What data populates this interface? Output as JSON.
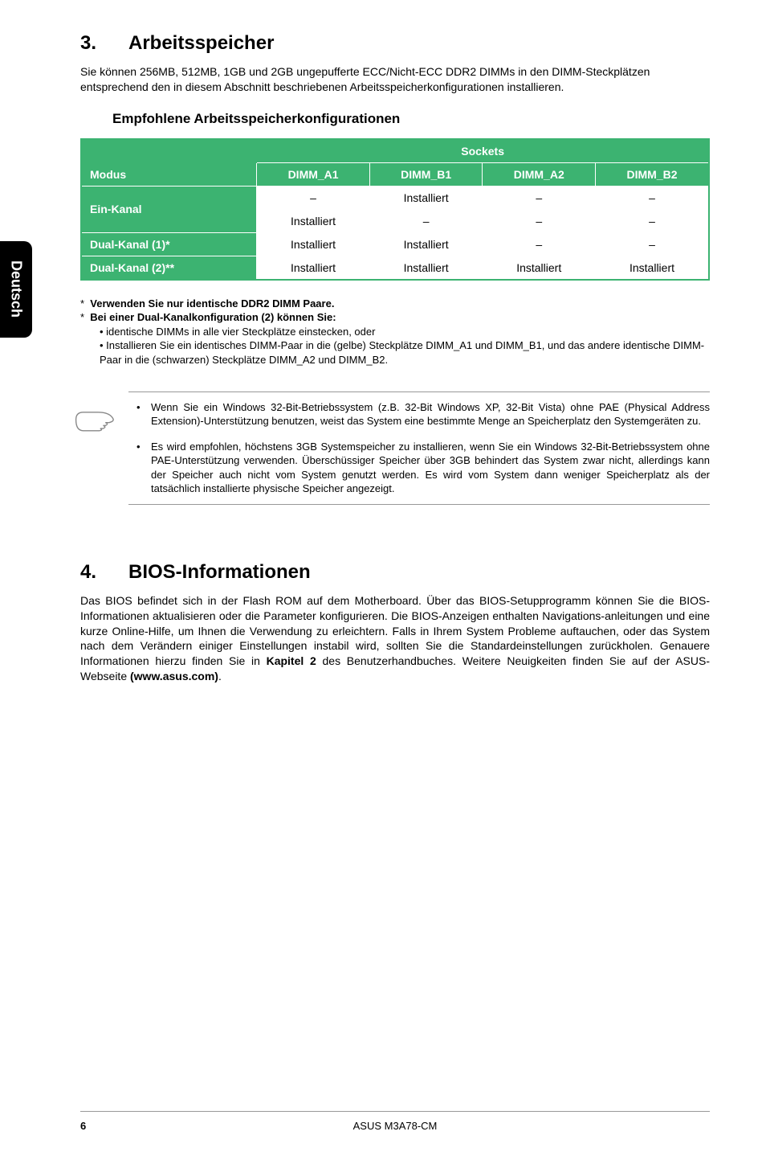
{
  "sidebar": {
    "language": "Deutsch"
  },
  "section3": {
    "num": "3.",
    "title": "Arbeitsspeicher",
    "intro": "Sie können 256MB, 512MB, 1GB und 2GB ungepufferte ECC/Nicht-ECC DDR2 DIMMs in den DIMM-Steckplätzen entsprechend den in diesem Abschnitt beschriebenen Arbeitsspeicherkonfigurationen installieren.",
    "sub": "Empfohlene Arbeitsspeicherkonfigurationen",
    "table": {
      "colors": {
        "header_bg": "#3cb371",
        "rowhead_bg": "#3cb371",
        "outer_border": "#3cb371"
      },
      "top_header": "Sockets",
      "cols": [
        "Modus",
        "DIMM_A1",
        "DIMM_B1",
        "DIMM_A2",
        "DIMM_B2"
      ],
      "rows": [
        {
          "label": "Ein-Kanal",
          "rowspan": 2,
          "cells": [
            "–",
            "Installiert",
            "–",
            "–"
          ]
        },
        {
          "label": null,
          "cells": [
            "Installiert",
            "–",
            "–",
            "–"
          ]
        },
        {
          "label": "Dual-Kanal (1)*",
          "cells": [
            "Installiert",
            "Installiert",
            "–",
            "–"
          ]
        },
        {
          "label": "Dual-Kanal (2)**",
          "cells": [
            "Installiert",
            "Installiert",
            "Installiert",
            "Installiert"
          ]
        }
      ]
    },
    "note1": "Verwenden Sie nur identische DDR2 DIMM Paare.",
    "note2_title": "Bei einer Dual-Kanalkonfiguration (2) können Sie:",
    "note2_items": [
      "identische DIMMs in alle vier Steckplätze einstecken, oder",
      "Installieren Sie ein identisches DIMM-Paar in die (gelbe) Steckplätze DIMM_A1 und DIMM_B1, und das andere identische DIMM-Paar in die (schwarzen) Steckplätze DIMM_A2 und DIMM_B2."
    ],
    "info_items": [
      "Wenn Sie ein Windows 32-Bit-Betriebssystem (z.B. 32-Bit Windows XP, 32-Bit Vista) ohne PAE (Physical Address Extension)-Unterstützung benutzen, weist das System eine bestimmte Menge an Speicherplatz den Systemgeräten zu.",
      "Es wird empfohlen, höchstens 3GB Systemspeicher zu installieren, wenn Sie ein Windows 32-Bit-Betriebssystem ohne PAE-Unterstützung verwenden. Überschüssiger Speicher über 3GB behindert das System zwar nicht, allerdings kann der Speicher auch nicht vom System genutzt werden. Es wird vom System dann weniger Speicherplatz als der tatsächlich installierte physische Speicher angezeigt."
    ]
  },
  "section4": {
    "num": "4.",
    "title": "BIOS-Informationen",
    "body_pre": "Das BIOS befindet sich in der Flash ROM auf dem Motherboard. Über das BIOS-Setupprogramm können Sie die BIOS-Informationen aktualisieren oder die Parameter konfigurieren. Die BIOS-Anzeigen enthalten Navigations-anleitungen und eine kurze Online-Hilfe, um Ihnen die Verwendung zu erleichtern. Falls in Ihrem System Probleme auftauchen, oder das System nach dem Verändern einiger Einstellungen instabil wird, sollten Sie die Standardeinstellungen zurückholen. Genauere Informationen hierzu finden Sie in ",
    "body_bold1": "Kapitel 2",
    "body_mid": " des Benutzerhandbuches. Weitere Neuigkeiten finden Sie auf der ASUS-Webseite ",
    "body_bold2": "(www.asus.com)",
    "body_post": "."
  },
  "footer": {
    "page": "6",
    "product": "ASUS M3A78-CM"
  }
}
